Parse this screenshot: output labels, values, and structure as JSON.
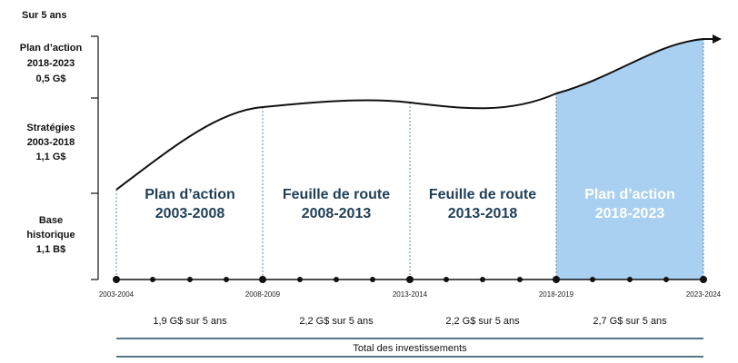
{
  "header": {
    "label": "Sur 5 ans"
  },
  "left_panel": {
    "sections": [
      {
        "lines": [
          "Plan d’action",
          "2018-2023",
          "0,5 G$"
        ]
      },
      {
        "lines": [
          "Stratégies",
          "2003-2018",
          "1,1 G$"
        ]
      },
      {
        "lines": [
          "Base",
          "historique",
          "1,1 B$"
        ]
      }
    ]
  },
  "phases": [
    {
      "lines": [
        "Plan d’action",
        "2003-2008"
      ],
      "highlighted": false
    },
    {
      "lines": [
        "Feuille de route",
        "2008-2013"
      ],
      "highlighted": false
    },
    {
      "lines": [
        "Feuille de route",
        "2013-2018"
      ],
      "highlighted": false
    },
    {
      "lines": [
        "Plan d’action",
        "2018-2023"
      ],
      "highlighted": true
    }
  ],
  "years": [
    "2003-2004",
    "2008-2009",
    "2013-2014",
    "2018-2019",
    "2023-2024"
  ],
  "amounts": [
    "1,9 G$ sur 5 ans",
    "2,2 G$ sur 5 ans",
    "2,2 G$ sur 5 ans",
    "2,7 G$ sur 5 ans"
  ],
  "total": {
    "label": "Total des investissements"
  },
  "colors": {
    "phase_text": "#1f3f57",
    "highlight_fill": "#a9d0f1",
    "highlight_text": "#ffffff",
    "lines": "#111111",
    "band": "#1f4a59",
    "dotted": "#5a8aa8"
  }
}
